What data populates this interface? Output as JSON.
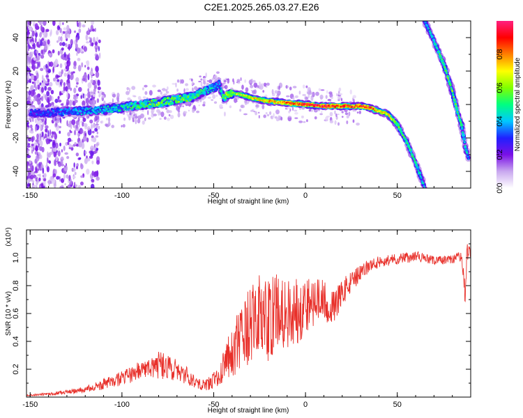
{
  "title": "C2E1.2025.265.03.27.E26",
  "chart_data": [
    {
      "type": "heatmap",
      "name": "spectrogram",
      "xlabel": "Height of straight line (km)",
      "ylabel": "Frequency (Hz)",
      "xlim": [
        -152,
        90
      ],
      "ylim": [
        -50,
        50
      ],
      "x_ticks": [
        -150,
        -100,
        -50,
        0,
        50
      ],
      "x_tick_labels": [
        "-150",
        "-100",
        "-50",
        "0",
        "50"
      ],
      "y_ticks": [
        -40,
        -20,
        0,
        20,
        40
      ],
      "y_tick_labels": [
        "-40",
        "-20",
        "0",
        "20",
        "40"
      ],
      "colorbar": {
        "label": "Normalized spectral amplitude",
        "range": [
          0,
          1
        ],
        "ticks": [
          0.0,
          0.2,
          0.4,
          0.6,
          0.8
        ],
        "tick_labels": [
          "0.0",
          "0.2",
          "0.4",
          "0.6",
          "0.8"
        ],
        "colors": [
          "#ffffff",
          "#c9a8ef",
          "#7a10e6",
          "#2020ff",
          "#00c8ff",
          "#00ff80",
          "#80ff00",
          "#ffff00",
          "#ff8000",
          "#ff0000",
          "#ff2080"
        ]
      },
      "traces": [
        {
          "name": "main-signal",
          "x": [
            -150,
            -140,
            -130,
            -120,
            -110,
            -100,
            -90,
            -80,
            -70,
            -60,
            -55,
            -50,
            -47,
            -45,
            -40,
            -35,
            -30,
            -20,
            -10,
            0,
            10,
            20,
            30,
            35,
            40,
            45,
            50,
            55,
            60,
            65
          ],
          "y": [
            -5,
            -5,
            -4,
            -4,
            -3,
            -2,
            0,
            1,
            3,
            5,
            8,
            10,
            12,
            4,
            7,
            6,
            4,
            2,
            1,
            0,
            -1,
            -1,
            -1,
            -2,
            -4,
            -6,
            -12,
            -22,
            -35,
            -50
          ],
          "amplitude": [
            0.3,
            0.3,
            0.35,
            0.4,
            0.4,
            0.45,
            0.5,
            0.55,
            0.55,
            0.5,
            0.45,
            0.4,
            0.35,
            0.55,
            0.6,
            0.6,
            0.65,
            0.7,
            0.8,
            0.85,
            0.85,
            0.8,
            0.8,
            0.85,
            0.7,
            0.65,
            0.55,
            0.5,
            0.45,
            0.4
          ]
        },
        {
          "name": "upper-right-signal",
          "x": [
            65,
            70,
            75,
            80,
            83,
            85,
            87,
            89
          ],
          "y": [
            50,
            38,
            25,
            8,
            -5,
            -12,
            -25,
            -33
          ],
          "amplitude": [
            0.4,
            0.45,
            0.5,
            0.55,
            0.5,
            0.5,
            0.45,
            0.4
          ]
        }
      ]
    },
    {
      "type": "line",
      "name": "snr",
      "xlabel": "Height of straight line (km)",
      "ylabel": "SNR (10 * v/v)",
      "y_multiplier": "(x10⁴)",
      "xlim": [
        -152,
        90
      ],
      "ylim": [
        0,
        1.2
      ],
      "x_ticks": [
        -150,
        -100,
        -50,
        0,
        50
      ],
      "x_tick_labels": [
        "-150",
        "-100",
        "-50",
        "0",
        "50"
      ],
      "y_ticks": [
        0.2,
        0.4,
        0.6,
        0.8,
        1.0
      ],
      "y_tick_labels": [
        "0.2",
        "0.4",
        "0.6",
        "0.8",
        "1.0"
      ],
      "color": "#e8302a",
      "series": [
        {
          "name": "SNR",
          "x": [
            -152,
            -140,
            -130,
            -120,
            -110,
            -100,
            -90,
            -80,
            -70,
            -60,
            -55,
            -50,
            -45,
            -40,
            -35,
            -30,
            -25,
            -20,
            -15,
            -10,
            -5,
            0,
            5,
            10,
            15,
            20,
            25,
            30,
            35,
            40,
            50,
            60,
            70,
            80,
            85,
            87,
            88,
            90
          ],
          "y": [
            0.01,
            0.02,
            0.03,
            0.05,
            0.08,
            0.12,
            0.17,
            0.2,
            0.17,
            0.1,
            0.07,
            0.1,
            0.18,
            0.27,
            0.33,
            0.42,
            0.5,
            0.45,
            0.55,
            0.52,
            0.55,
            0.6,
            0.63,
            0.65,
            0.6,
            0.72,
            0.8,
            0.87,
            0.93,
            0.96,
            0.98,
            1.0,
            0.97,
            0.98,
            1.0,
            0.7,
            1.05,
            0.98
          ],
          "noise_amplitude": [
            0.005,
            0.01,
            0.015,
            0.02,
            0.04,
            0.05,
            0.07,
            0.1,
            0.08,
            0.05,
            0.04,
            0.06,
            0.1,
            0.2,
            0.25,
            0.3,
            0.3,
            0.3,
            0.28,
            0.25,
            0.25,
            0.22,
            0.18,
            0.15,
            0.12,
            0.1,
            0.08,
            0.06,
            0.05,
            0.04,
            0.04,
            0.04,
            0.03,
            0.03,
            0.04,
            0.08,
            0.08,
            0.05
          ]
        }
      ]
    }
  ]
}
